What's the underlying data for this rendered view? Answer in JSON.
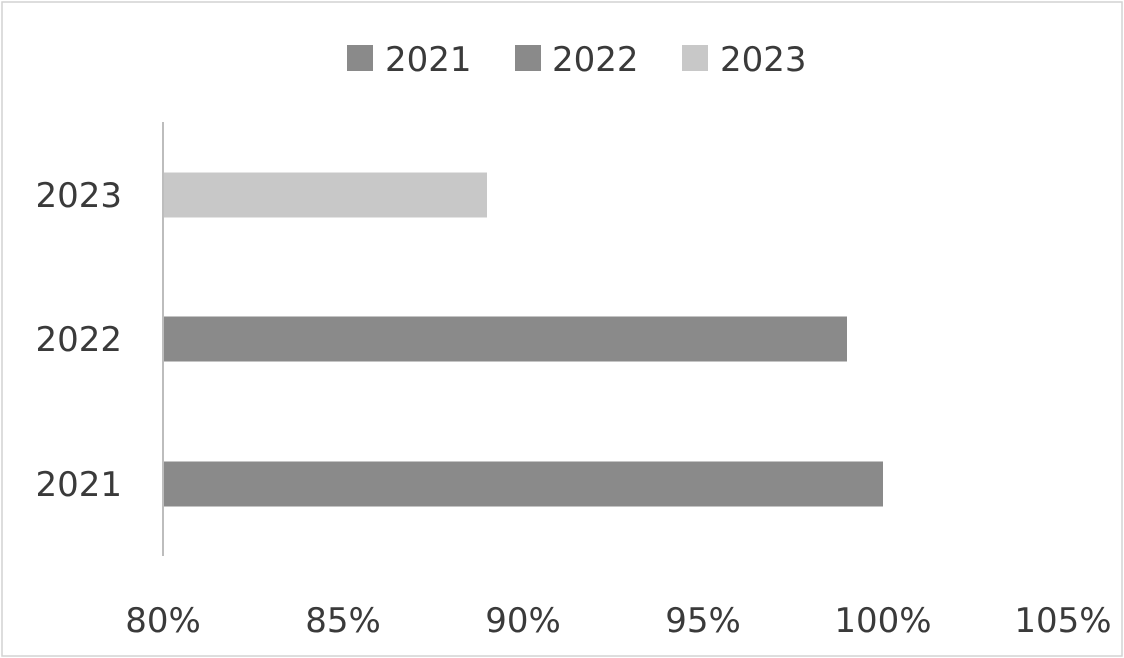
{
  "chart_data": {
    "type": "bar",
    "orientation": "horizontal",
    "categories": [
      "2021",
      "2022",
      "2023"
    ],
    "values": [
      1.0,
      0.99,
      0.89
    ],
    "series": [
      {
        "name": "2021",
        "values": [
          1.0,
          null,
          null
        ],
        "color": "#8a8a8a"
      },
      {
        "name": "2022",
        "values": [
          null,
          0.99,
          null
        ],
        "color": "#8a8a8a"
      },
      {
        "name": "2023",
        "values": [
          null,
          null,
          0.89
        ],
        "color": "#c8c8c8"
      }
    ],
    "title": "",
    "xlabel": "",
    "ylabel": "",
    "xlim": [
      0.8,
      1.05
    ],
    "x_ticks": [
      0.8,
      0.85,
      0.9,
      0.95,
      1.0,
      1.05
    ],
    "x_tick_labels": [
      "80%",
      "85%",
      "90%",
      "95%",
      "100%",
      "105%"
    ],
    "grid": false,
    "legend_position": "top"
  }
}
